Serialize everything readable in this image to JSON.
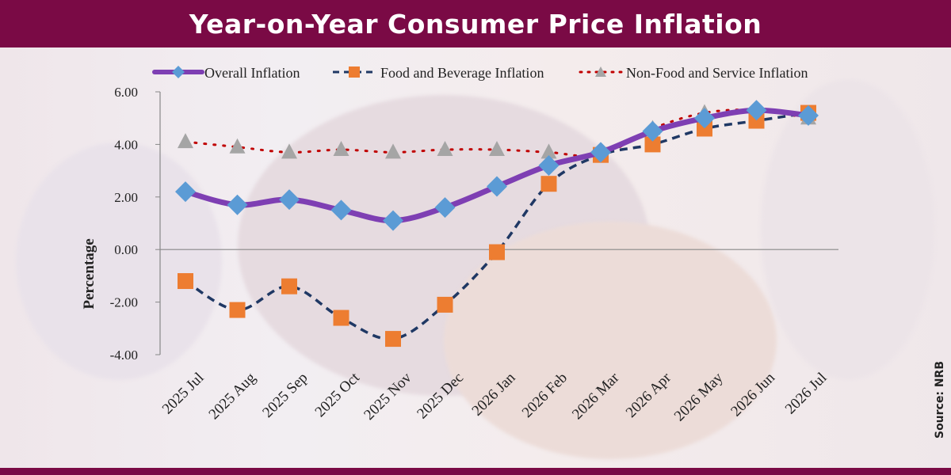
{
  "header": {
    "title": "Year-on-Year Consumer Price Inflation"
  },
  "footer": {
    "source": "Source: NRB"
  },
  "colors": {
    "brand": "#7a0a45",
    "overall": "#7e3fb3",
    "overall_marker": "#5b9bd5",
    "food": "#1f3864",
    "food_marker": "#ed7d31",
    "nonfood_line": "#c00000",
    "nonfood_marker": "#a5a5a5"
  },
  "chart_data": {
    "type": "line",
    "categories": [
      "2025 Jul",
      "2025 Aug",
      "2025 Sep",
      "2025 Oct",
      "2025 Nov",
      "2025 Dec",
      "2026 Jan",
      "2026 Feb",
      "2026 Mar",
      "2026 Apr",
      "2026 May",
      "2026 Jun",
      "2026 Jul"
    ],
    "series": [
      {
        "name": "Overall Inflation",
        "values": [
          2.2,
          1.7,
          1.9,
          1.5,
          1.1,
          1.6,
          2.4,
          3.2,
          3.7,
          4.5,
          5.0,
          5.3,
          5.1
        ]
      },
      {
        "name": "Food and Beverage Inflation",
        "values": [
          -1.2,
          -2.3,
          -1.4,
          -2.6,
          -3.4,
          -2.1,
          -0.1,
          2.5,
          3.6,
          4.0,
          4.6,
          4.9,
          5.2
        ]
      },
      {
        "name": "Non-Food and Service Inflation",
        "values": [
          4.1,
          3.9,
          3.7,
          3.8,
          3.7,
          3.8,
          3.8,
          3.7,
          3.6,
          4.6,
          5.2,
          5.3,
          5.0
        ]
      }
    ],
    "ylabel": "Percentage",
    "ylim": [
      -4,
      6
    ],
    "yticks": [
      "6.00",
      "4.00",
      "2.00",
      "0.00",
      "-2.00",
      "-4.00"
    ],
    "legend_position": "top"
  }
}
